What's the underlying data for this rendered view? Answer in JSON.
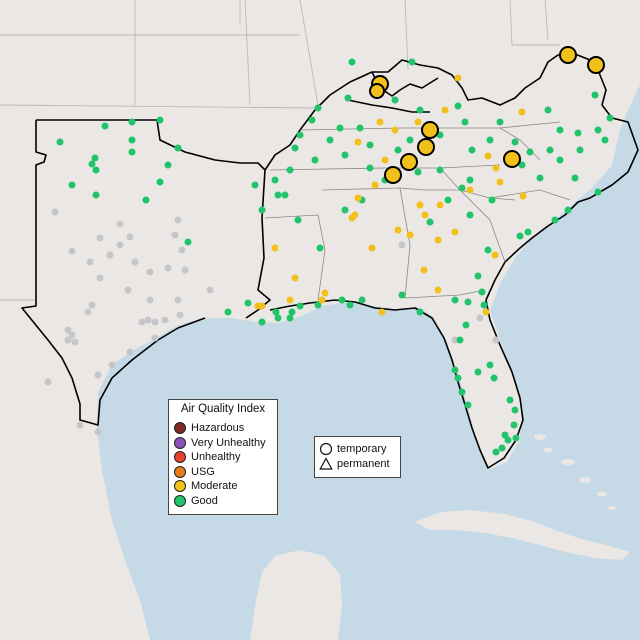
{
  "map": {
    "type": "air-quality-monitor-map",
    "fill_ocean": "#c5d9e6",
    "fill_land": "#ebe7e4",
    "state_line_color": "#bcb8b5",
    "boundary_color": "#000000"
  },
  "aqi_legend": {
    "title": "Air Quality Index",
    "items": [
      {
        "label": "Hazardous",
        "color": "#7e2a26"
      },
      {
        "label": "Very Unhealthy",
        "color": "#8f4fb8"
      },
      {
        "label": "Unhealthy",
        "color": "#e8422c"
      },
      {
        "label": "USG",
        "color": "#e87d17"
      },
      {
        "label": "Moderate",
        "color": "#f2c01a"
      },
      {
        "label": "Good",
        "color": "#21c46b"
      }
    ]
  },
  "shape_legend": {
    "items": [
      {
        "label": "temporary",
        "icon": "circle-outline-icon"
      },
      {
        "label": "permanent",
        "icon": "triangle-outline-icon"
      }
    ]
  },
  "colors": {
    "good": "#21c46b",
    "moderate": "#f2c01a",
    "no_data": "#c4c6ca",
    "marker_stroke": "#000000"
  }
}
